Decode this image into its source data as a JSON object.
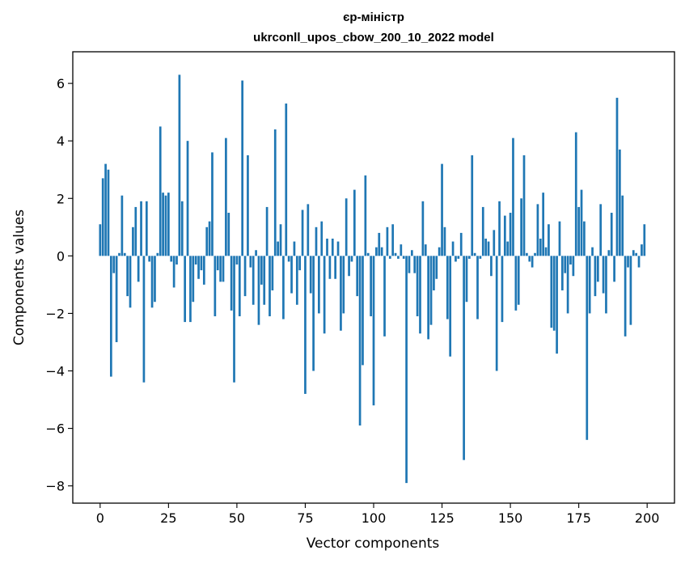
{
  "chart_data": {
    "type": "bar",
    "title_line1": "єр-міністр",
    "title_line2": "ukrconll_upos_cbow_200_10_2022 model",
    "xlabel": "Vector components",
    "ylabel": "Components values",
    "xlim": [
      -10,
      210
    ],
    "ylim": [
      -8.6,
      7.1
    ],
    "xticks": [
      0,
      25,
      50,
      75,
      100,
      125,
      150,
      175,
      200
    ],
    "yticks": [
      6,
      4,
      2,
      0,
      -2,
      -4,
      -6,
      -8
    ],
    "ytick_labels": [
      "6",
      "4",
      "2",
      "0",
      "−2",
      "−4",
      "−6",
      "−8"
    ],
    "bar_color": "#1f77b4",
    "values": [
      1.1,
      2.7,
      3.2,
      3.0,
      -4.2,
      -0.6,
      -3.0,
      0.1,
      2.1,
      0.1,
      -1.4,
      -1.8,
      1.0,
      1.7,
      -0.9,
      1.9,
      -4.4,
      1.9,
      -0.2,
      -1.8,
      -1.6,
      0.1,
      4.5,
      2.2,
      2.1,
      2.2,
      -0.2,
      -1.1,
      -0.3,
      6.3,
      1.9,
      -2.3,
      4.0,
      -2.3,
      -1.6,
      -0.3,
      -0.8,
      -0.5,
      -1.0,
      1.0,
      1.2,
      3.6,
      -2.1,
      -0.5,
      -0.9,
      -0.9,
      4.1,
      1.5,
      -1.9,
      -4.4,
      -0.3,
      -2.1,
      6.1,
      -1.4,
      3.5,
      -0.4,
      -1.7,
      0.2,
      -2.4,
      -1.0,
      -1.7,
      1.7,
      -2.1,
      -1.2,
      4.4,
      0.5,
      1.1,
      -2.2,
      5.3,
      -0.2,
      -1.3,
      0.5,
      -1.7,
      -0.5,
      1.6,
      -4.8,
      1.8,
      -1.3,
      -4.0,
      1.0,
      -2.0,
      1.2,
      -2.7,
      0.6,
      -0.8,
      0.6,
      -0.8,
      0.5,
      -2.6,
      -2.0,
      2.0,
      -0.7,
      -0.2,
      2.3,
      -1.4,
      -5.9,
      -3.8,
      2.8,
      0.1,
      -2.1,
      -5.2,
      0.3,
      0.8,
      0.3,
      -2.8,
      1.0,
      -0.1,
      1.1,
      0.1,
      -0.1,
      0.4,
      -0.1,
      -7.9,
      -0.6,
      0.2,
      -0.6,
      -2.1,
      -2.7,
      1.9,
      0.4,
      -2.9,
      -2.4,
      -1.2,
      -0.8,
      0.3,
      3.2,
      1.0,
      -2.2,
      -3.5,
      0.5,
      -0.2,
      -0.1,
      0.8,
      -7.1,
      -1.6,
      -0.1,
      3.5,
      0.1,
      -2.2,
      -0.1,
      1.7,
      0.6,
      0.5,
      -0.7,
      0.9,
      -4.0,
      1.9,
      -2.3,
      1.4,
      0.5,
      1.5,
      4.1,
      -1.9,
      -1.7,
      2.0,
      3.5,
      0.1,
      -0.2,
      -0.4,
      0.1,
      1.8,
      0.6,
      2.2,
      0.3,
      1.1,
      -2.5,
      -2.6,
      -3.4,
      1.2,
      -1.2,
      -0.6,
      -2.0,
      -0.3,
      -0.7,
      4.3,
      1.7,
      2.3,
      1.2,
      -6.4,
      -2.0,
      0.3,
      -1.4,
      -0.9,
      1.8,
      -1.3,
      -2.0,
      0.2,
      1.5,
      -0.9,
      5.5,
      3.7,
      2.1,
      -2.8,
      -0.4,
      -2.4,
      0.2,
      0.1,
      -0.4,
      0.4,
      1.1
    ]
  }
}
